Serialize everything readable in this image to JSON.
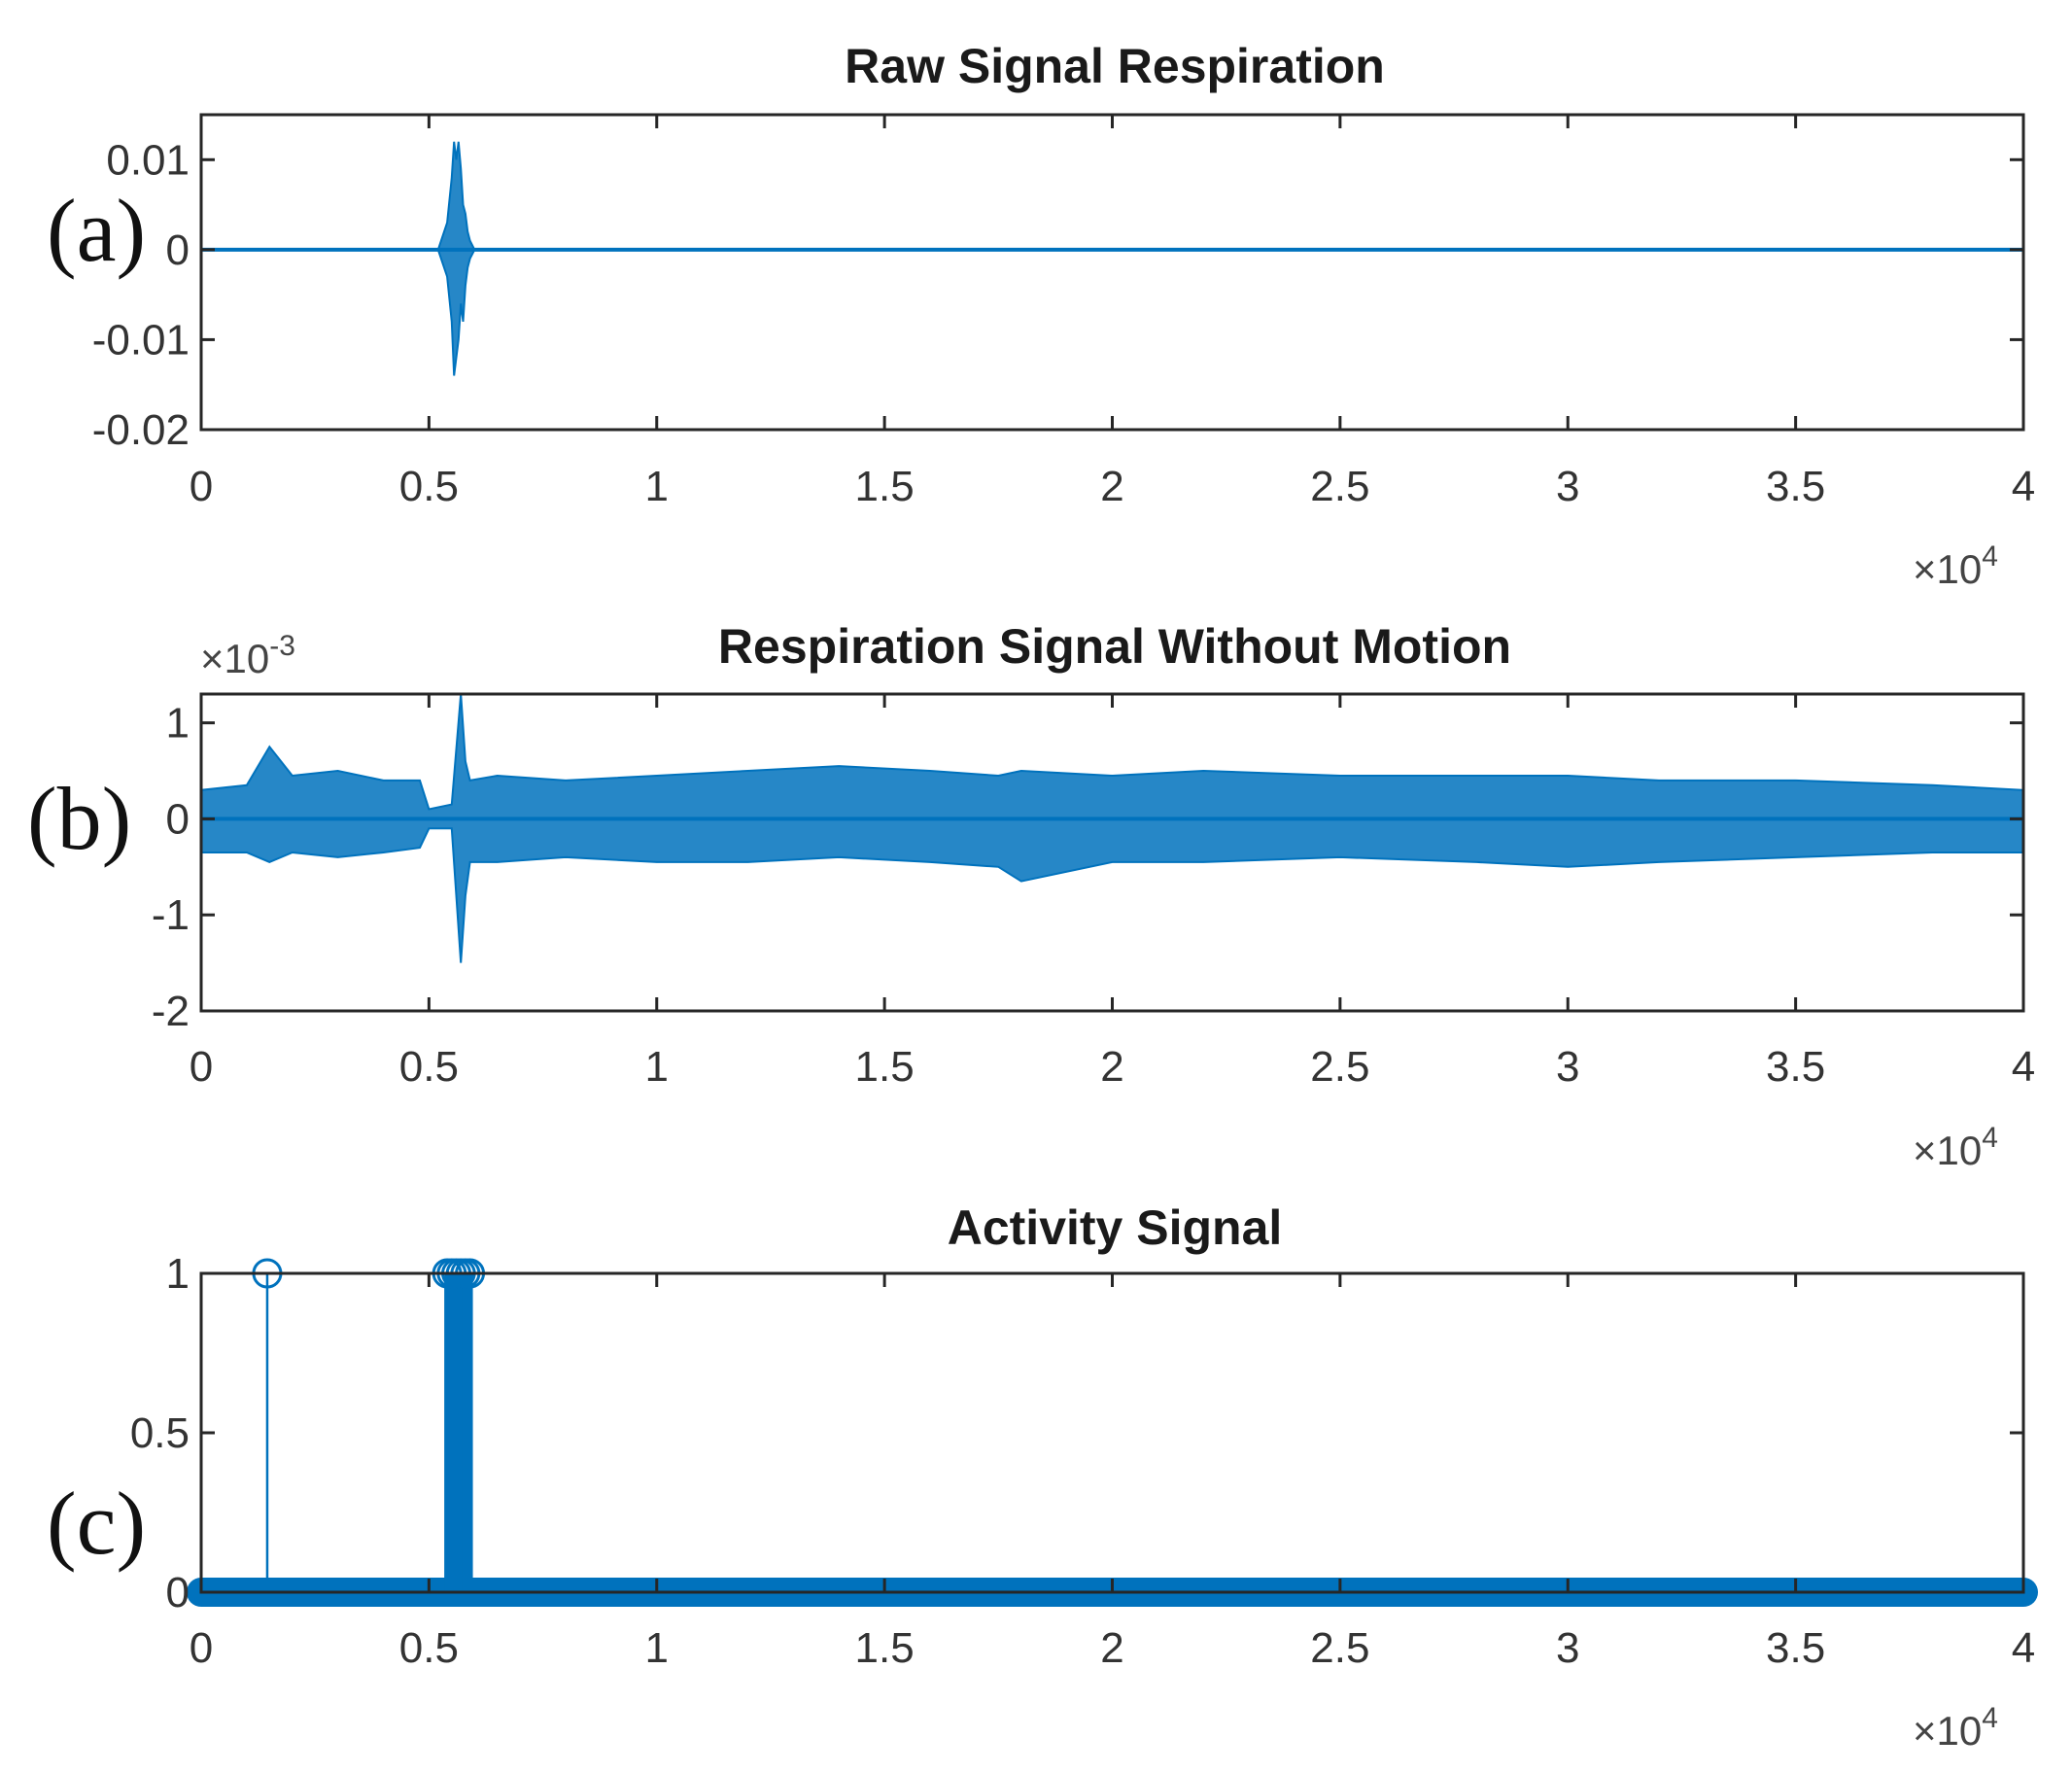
{
  "chart_data": [
    {
      "panel_label": "(a)",
      "type": "line",
      "title": "Raw Signal Respiration",
      "xlim": [
        0,
        40000
      ],
      "ylim": [
        -0.02,
        0.015
      ],
      "x_ticks": [
        "0",
        "0.5",
        "1",
        "1.5",
        "2",
        "2.5",
        "3",
        "3.5",
        "4"
      ],
      "x_multiplier": "×10",
      "x_multiplier_exp": "4",
      "y_ticks": [
        "0.01",
        "0",
        "-0.01",
        "-0.02"
      ],
      "y_tick_values": [
        0.01,
        0,
        -0.01,
        -0.02
      ],
      "color": "#0072BD",
      "series": [
        {
          "x": [
            0,
            5200,
            5400,
            5500,
            5550,
            5600,
            5650,
            5700,
            5750,
            5800,
            5850,
            5900,
            6000,
            40000
          ],
          "y_min": [
            0,
            0,
            -0.003,
            -0.008,
            -0.014,
            -0.012,
            -0.01,
            -0.006,
            -0.008,
            -0.004,
            -0.002,
            -0.001,
            0,
            0
          ],
          "y_max": [
            0,
            0,
            0.003,
            0.008,
            0.012,
            0.01,
            0.012,
            0.009,
            0.005,
            0.004,
            0.002,
            0.001,
            0,
            0
          ]
        }
      ]
    },
    {
      "panel_label": "(b)",
      "type": "line",
      "title": "Respiration Signal Without Motion",
      "xlim": [
        0,
        40000
      ],
      "ylim": [
        -2,
        1.3
      ],
      "y_multiplier": "×10",
      "y_multiplier_exp": "-3",
      "x_ticks": [
        "0",
        "0.5",
        "1",
        "1.5",
        "2",
        "2.5",
        "3",
        "3.5",
        "4"
      ],
      "x_multiplier": "×10",
      "x_multiplier_exp": "4",
      "y_ticks": [
        "1",
        "0",
        "-1",
        "-2"
      ],
      "y_tick_values": [
        1,
        0,
        -1,
        -2
      ],
      "color": "#0072BD",
      "series": [
        {
          "x": [
            0,
            1000,
            1500,
            2000,
            3000,
            4000,
            4800,
            5000,
            5500,
            5700,
            5800,
            5900,
            6500,
            8000,
            10000,
            12000,
            14000,
            16000,
            17500,
            18000,
            20000,
            22000,
            25000,
            28000,
            30000,
            32000,
            35000,
            38000,
            40000
          ],
          "y_min": [
            -0.35,
            -0.35,
            -0.45,
            -0.35,
            -0.4,
            -0.35,
            -0.3,
            -0.1,
            -0.1,
            -1.5,
            -0.8,
            -0.45,
            -0.45,
            -0.4,
            -0.45,
            -0.45,
            -0.4,
            -0.45,
            -0.5,
            -0.65,
            -0.45,
            -0.45,
            -0.4,
            -0.45,
            -0.5,
            -0.45,
            -0.4,
            -0.35,
            -0.35
          ],
          "y_max": [
            0.3,
            0.35,
            0.75,
            0.45,
            0.5,
            0.4,
            0.4,
            0.1,
            0.15,
            1.3,
            0.6,
            0.4,
            0.45,
            0.4,
            0.45,
            0.5,
            0.55,
            0.5,
            0.45,
            0.5,
            0.45,
            0.5,
            0.45,
            0.45,
            0.45,
            0.4,
            0.4,
            0.35,
            0.3
          ]
        }
      ]
    },
    {
      "panel_label": "(c)",
      "type": "scatter",
      "title": "Activity Signal",
      "xlim": [
        0,
        40000
      ],
      "ylim": [
        0,
        1
      ],
      "x_ticks": [
        "0",
        "0.5",
        "1",
        "1.5",
        "2",
        "2.5",
        "3",
        "3.5",
        "4"
      ],
      "x_multiplier": "×10",
      "x_multiplier_exp": "4",
      "y_ticks": [
        "1",
        "0.5",
        "0"
      ],
      "y_tick_values": [
        1,
        0.5,
        0
      ],
      "color": "#0072BD",
      "stem_ones_x": [
        1450,
        5400,
        5500,
        5600,
        5700,
        5800,
        5900
      ],
      "stem_zero_range": [
        0,
        40000
      ]
    }
  ]
}
